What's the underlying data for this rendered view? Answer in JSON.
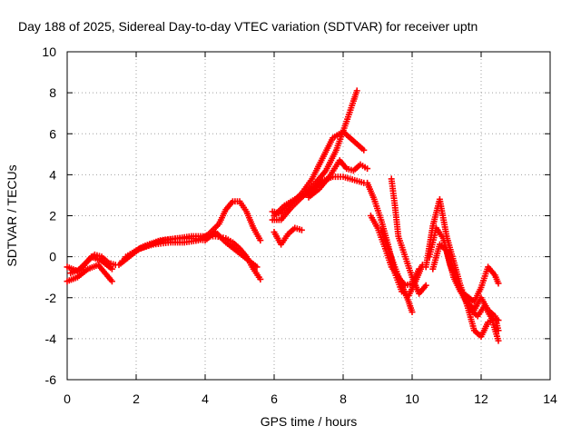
{
  "chart_data": {
    "type": "scatter",
    "title": "Day 188 of 2025, Sidereal Day-to-day VTEC variation (SDTVAR) for receiver uptn",
    "xlabel": "GPS time / hours",
    "ylabel": "SDTVAR / TECUs",
    "xlim": [
      0,
      14
    ],
    "ylim": [
      -6,
      10
    ],
    "x_ticks": [
      "0",
      "2",
      "4",
      "6",
      "8",
      "10",
      "12",
      "14"
    ],
    "y_ticks": [
      "-6",
      "-4",
      "-2",
      "0",
      "2",
      "4",
      "6",
      "8",
      "10"
    ],
    "grid": true,
    "marker": "plus",
    "series_color": "#ff0000",
    "series": [
      {
        "x": [
          0.0,
          0.3,
          0.6,
          0.8,
          1.0,
          1.2,
          1.4
        ],
        "y": [
          -0.5,
          -0.7,
          -0.2,
          0.1,
          0.0,
          -0.3,
          -0.4
        ]
      },
      {
        "x": [
          0.0,
          0.3,
          0.6,
          0.9,
          1.1,
          1.3
        ],
        "y": [
          -1.2,
          -1.0,
          -0.6,
          -0.4,
          -0.8,
          -1.2
        ]
      },
      {
        "x": [
          0.1,
          0.4,
          0.7,
          1.0,
          1.3
        ],
        "y": [
          -0.8,
          -0.6,
          0.0,
          -0.2,
          -0.6
        ]
      },
      {
        "x": [
          1.5,
          1.8,
          2.1,
          2.5,
          3.0,
          3.4,
          3.8,
          4.1,
          4.4,
          4.6,
          4.8,
          5.0,
          5.2,
          5.4,
          5.6
        ],
        "y": [
          -0.4,
          0.0,
          0.4,
          0.6,
          0.7,
          0.7,
          0.8,
          1.1,
          1.6,
          2.3,
          2.7,
          2.7,
          2.2,
          1.4,
          0.8
        ]
      },
      {
        "x": [
          1.6,
          2.0,
          2.4,
          2.8,
          3.2,
          3.6,
          4.0,
          4.3,
          4.6,
          4.8,
          5.0,
          5.2,
          5.4,
          5.6
        ],
        "y": [
          -0.2,
          0.3,
          0.6,
          0.8,
          0.9,
          1.0,
          1.0,
          1.0,
          0.9,
          0.7,
          0.4,
          0.0,
          -0.6,
          -1.1
        ]
      },
      {
        "x": [
          1.7,
          2.2,
          2.7,
          3.2,
          3.6,
          4.0,
          4.3,
          4.6,
          4.9,
          5.2,
          5.5
        ],
        "y": [
          0.0,
          0.5,
          0.8,
          0.9,
          0.9,
          0.8,
          1.2,
          0.7,
          0.3,
          -0.1,
          -0.5
        ]
      },
      {
        "x": [
          5.95,
          6.2,
          6.5,
          6.8,
          7.1,
          7.4,
          7.7,
          8.0,
          8.2,
          8.4,
          8.6
        ],
        "y": [
          2.2,
          2.1,
          2.6,
          3.1,
          3.8,
          4.8,
          5.8,
          6.1,
          5.8,
          5.5,
          5.2
        ]
      },
      {
        "x": [
          5.95,
          6.2,
          6.5,
          6.8,
          7.1,
          7.4,
          7.7,
          8.0,
          8.2,
          8.4,
          8.6
        ],
        "y": [
          1.8,
          1.8,
          2.4,
          2.9,
          3.3,
          3.7,
          3.9,
          3.9,
          3.8,
          3.7,
          3.6
        ]
      },
      {
        "x": [
          6.0,
          6.3,
          6.6,
          6.9,
          7.2,
          7.5,
          7.8,
          8.1,
          8.3,
          8.4
        ],
        "y": [
          2.0,
          2.5,
          2.8,
          3.1,
          3.6,
          4.2,
          5.2,
          6.6,
          7.6,
          8.1
        ]
      },
      {
        "x": [
          7.0,
          7.3,
          7.6,
          7.9,
          8.1,
          8.3,
          8.5,
          8.7
        ],
        "y": [
          2.9,
          3.3,
          3.9,
          4.7,
          4.3,
          4.2,
          4.5,
          4.3
        ]
      },
      {
        "x": [
          6.0,
          6.2,
          6.4,
          6.6,
          6.8
        ],
        "y": [
          1.2,
          0.6,
          1.1,
          1.4,
          1.3
        ]
      },
      {
        "x": [
          8.7,
          8.9,
          9.1,
          9.3,
          9.5,
          9.7,
          9.9,
          10.1,
          10.3
        ],
        "y": [
          3.6,
          2.8,
          1.8,
          0.6,
          -0.8,
          -1.7,
          -1.9,
          -1.2,
          -0.4
        ]
      },
      {
        "x": [
          8.8,
          9.0,
          9.2,
          9.4,
          9.6,
          9.8,
          10.0,
          10.2
        ],
        "y": [
          2.0,
          1.4,
          0.5,
          -0.5,
          -1.0,
          -1.4,
          -1.3,
          -0.6
        ]
      },
      {
        "x": [
          9.1,
          9.3,
          9.5,
          9.7,
          9.9,
          10.0
        ],
        "y": [
          1.3,
          0.4,
          -0.5,
          -1.4,
          -2.2,
          -2.7
        ]
      },
      {
        "x": [
          9.4,
          9.5,
          9.6,
          9.8,
          10.0,
          10.2,
          10.4
        ],
        "y": [
          3.8,
          2.5,
          1.0,
          0.0,
          -1.0,
          -1.8,
          -1.4
        ]
      },
      {
        "x": [
          10.4,
          10.6,
          10.8,
          11.0,
          11.2,
          11.4,
          11.6,
          11.8,
          12.0,
          12.2,
          12.4,
          12.5
        ],
        "y": [
          -0.5,
          1.5,
          2.8,
          1.0,
          -0.2,
          -1.4,
          -2.4,
          -3.6,
          -3.9,
          -3.2,
          -3.0,
          -3.1
        ]
      },
      {
        "x": [
          10.5,
          10.7,
          10.9,
          11.1,
          11.3,
          11.5,
          11.7,
          11.9,
          12.1,
          12.3,
          12.5
        ],
        "y": [
          0.0,
          1.4,
          0.9,
          -0.4,
          -1.2,
          -2.0,
          -2.6,
          -2.9,
          -2.4,
          -3.0,
          -4.1
        ]
      },
      {
        "x": [
          10.6,
          10.8,
          11.0,
          11.2,
          11.4,
          11.6,
          11.8,
          12.0,
          12.2,
          12.4,
          12.5
        ],
        "y": [
          -0.6,
          0.6,
          0.3,
          -1.0,
          -1.7,
          -2.2,
          -2.6,
          -2.0,
          -2.6,
          -2.9,
          -3.6
        ]
      },
      {
        "x": [
          11.5,
          11.8,
          12.0,
          12.2,
          12.4,
          12.5
        ],
        "y": [
          -1.8,
          -2.2,
          -1.5,
          -0.5,
          -0.9,
          -1.3
        ]
      }
    ]
  }
}
